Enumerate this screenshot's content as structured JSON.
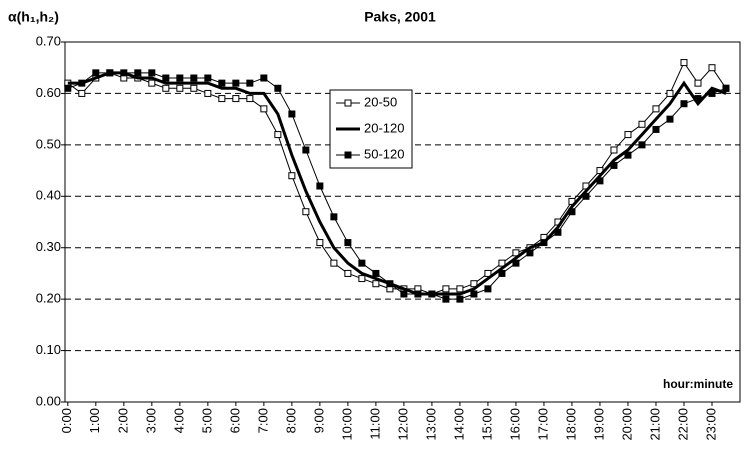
{
  "chart_data": {
    "type": "line",
    "title": "Paks, 2001",
    "ylabel": "α(h₁,h₂)",
    "annotation": "hour:minute",
    "x": [
      0,
      0.5,
      1,
      1.5,
      2,
      2.5,
      3,
      3.5,
      4,
      4.5,
      5,
      5.5,
      6,
      6.5,
      7,
      7.5,
      8,
      8.5,
      9,
      9.5,
      10,
      10.5,
      11,
      11.5,
      12,
      12.5,
      13,
      13.5,
      14,
      14.5,
      15,
      15.5,
      16,
      16.5,
      17,
      17.5,
      18,
      18.5,
      19,
      19.5,
      20,
      20.5,
      21,
      21.5,
      22,
      22.5,
      23,
      23.5
    ],
    "series": [
      {
        "name": "20-50",
        "color": "#000000",
        "marker": "square-open",
        "width": 1,
        "values": [
          0.62,
          0.6,
          0.63,
          0.64,
          0.63,
          0.63,
          0.62,
          0.61,
          0.61,
          0.61,
          0.6,
          0.59,
          0.59,
          0.59,
          0.57,
          0.52,
          0.44,
          0.37,
          0.31,
          0.27,
          0.25,
          0.24,
          0.23,
          0.22,
          0.22,
          0.22,
          0.21,
          0.22,
          0.22,
          0.23,
          0.25,
          0.27,
          0.29,
          0.3,
          0.32,
          0.35,
          0.39,
          0.42,
          0.45,
          0.49,
          0.52,
          0.54,
          0.57,
          0.6,
          0.66,
          0.62,
          0.65,
          0.61
        ]
      },
      {
        "name": "20-120",
        "color": "#000000",
        "marker": "none",
        "width": 3,
        "values": [
          0.62,
          0.62,
          0.63,
          0.64,
          0.64,
          0.63,
          0.63,
          0.62,
          0.62,
          0.62,
          0.62,
          0.61,
          0.61,
          0.6,
          0.6,
          0.56,
          0.48,
          0.41,
          0.35,
          0.3,
          0.27,
          0.25,
          0.24,
          0.23,
          0.22,
          0.21,
          0.21,
          0.21,
          0.21,
          0.22,
          0.24,
          0.26,
          0.28,
          0.3,
          0.31,
          0.34,
          0.38,
          0.41,
          0.44,
          0.47,
          0.49,
          0.52,
          0.55,
          0.58,
          0.62,
          0.58,
          0.61,
          0.6
        ]
      },
      {
        "name": "50-120",
        "color": "#000000",
        "marker": "square-filled",
        "width": 1,
        "values": [
          0.61,
          0.62,
          0.64,
          0.64,
          0.64,
          0.64,
          0.64,
          0.63,
          0.63,
          0.63,
          0.63,
          0.62,
          0.62,
          0.62,
          0.63,
          0.61,
          0.56,
          0.49,
          0.42,
          0.36,
          0.31,
          0.27,
          0.25,
          0.23,
          0.21,
          0.21,
          0.21,
          0.2,
          0.2,
          0.21,
          0.22,
          0.25,
          0.27,
          0.29,
          0.31,
          0.33,
          0.37,
          0.4,
          0.43,
          0.46,
          0.48,
          0.5,
          0.53,
          0.55,
          0.58,
          0.59,
          0.6,
          0.61
        ]
      }
    ],
    "xlim": [
      -0.1,
      24
    ],
    "xticks": [
      {
        "value": 0,
        "label": "0:00"
      },
      {
        "value": 1,
        "label": "1:00"
      },
      {
        "value": 2,
        "label": "2:00"
      },
      {
        "value": 3,
        "label": "3:00"
      },
      {
        "value": 4,
        "label": "4:00"
      },
      {
        "value": 5,
        "label": "5:00"
      },
      {
        "value": 6,
        "label": "6:00"
      },
      {
        "value": 7,
        "label": "7:00"
      },
      {
        "value": 8,
        "label": "8:00"
      },
      {
        "value": 9,
        "label": "9:00"
      },
      {
        "value": 10,
        "label": "10:00"
      },
      {
        "value": 11,
        "label": "11:00"
      },
      {
        "value": 12,
        "label": "12:00"
      },
      {
        "value": 13,
        "label": "13:00"
      },
      {
        "value": 14,
        "label": "14:00"
      },
      {
        "value": 15,
        "label": "15:00"
      },
      {
        "value": 16,
        "label": "16:00"
      },
      {
        "value": 17,
        "label": "17:00"
      },
      {
        "value": 18,
        "label": "18:00"
      },
      {
        "value": 19,
        "label": "19:00"
      },
      {
        "value": 20,
        "label": "20:00"
      },
      {
        "value": 21,
        "label": "21:00"
      },
      {
        "value": 22,
        "label": "22:00"
      },
      {
        "value": 23,
        "label": "23:00"
      }
    ],
    "ylim": [
      0,
      0.7
    ],
    "yticks": [
      {
        "value": 0,
        "label": "0.00"
      },
      {
        "value": 0.1,
        "label": "0.10"
      },
      {
        "value": 0.2,
        "label": "0.20"
      },
      {
        "value": 0.3,
        "label": "0.30"
      },
      {
        "value": 0.4,
        "label": "0.40"
      },
      {
        "value": 0.5,
        "label": "0.50"
      },
      {
        "value": 0.6,
        "label": "0.60"
      },
      {
        "value": 0.7,
        "label": "0.70"
      }
    ],
    "grid": true
  }
}
